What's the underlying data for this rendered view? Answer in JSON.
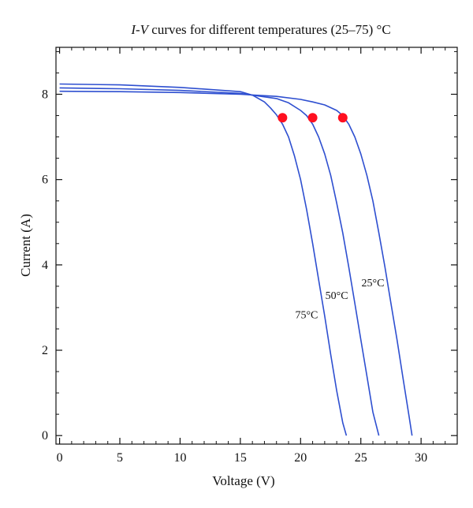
{
  "chart_data": {
    "type": "line",
    "title_italic": "I-V",
    "title_rest": " curves for different temperatures (25–75) °C",
    "xlabel": "Voltage (V)",
    "ylabel": "Current (A)",
    "xlim": [
      -0.3,
      33
    ],
    "ylim": [
      -0.2,
      9.1
    ],
    "xticks": [
      0,
      5,
      10,
      15,
      20,
      25,
      30
    ],
    "yticks": [
      0,
      2,
      4,
      6,
      8
    ],
    "grid": false,
    "line_color": "#2e4fd0",
    "marker_color": "#ff1020",
    "series": [
      {
        "name": "25°C",
        "x": [
          0,
          5,
          10,
          15,
          18,
          20,
          21,
          22,
          23,
          23.5,
          24,
          24.5,
          25,
          25.5,
          26,
          26.5,
          27,
          27.5,
          28,
          28.5,
          29,
          29.25
        ],
        "y": [
          8.07,
          8.06,
          8.04,
          8.0,
          7.95,
          7.88,
          7.82,
          7.75,
          7.62,
          7.5,
          7.3,
          7.0,
          6.6,
          6.1,
          5.5,
          4.75,
          3.95,
          3.1,
          2.25,
          1.35,
          0.45,
          0.0
        ],
        "mpp": [
          23.5,
          7.45
        ],
        "label_at": [
          26.0,
          3.5
        ]
      },
      {
        "name": "50°C",
        "x": [
          0,
          5,
          10,
          15,
          18,
          19,
          20,
          20.5,
          21,
          21.5,
          22,
          22.5,
          23,
          23.5,
          24,
          24.5,
          25,
          25.5,
          26,
          26.5
        ],
        "y": [
          8.15,
          8.13,
          8.09,
          8.02,
          7.9,
          7.8,
          7.62,
          7.5,
          7.3,
          7.0,
          6.6,
          6.1,
          5.45,
          4.75,
          3.95,
          3.1,
          2.25,
          1.4,
          0.55,
          0.0
        ],
        "mpp": [
          21.0,
          7.45
        ],
        "label_at": [
          23.0,
          3.2
        ]
      },
      {
        "name": "75°C",
        "x": [
          0,
          5,
          10,
          15,
          16,
          17,
          17.5,
          18,
          18.5,
          19,
          19.5,
          20,
          20.5,
          21,
          21.5,
          22,
          22.5,
          23,
          23.5,
          23.8
        ],
        "y": [
          8.24,
          8.22,
          8.16,
          8.06,
          7.98,
          7.82,
          7.68,
          7.52,
          7.3,
          7.0,
          6.55,
          6.0,
          5.3,
          4.5,
          3.65,
          2.8,
          1.9,
          1.05,
          0.3,
          0.0
        ],
        "mpp": [
          18.5,
          7.45
        ],
        "label_at": [
          20.5,
          2.75
        ]
      }
    ]
  }
}
